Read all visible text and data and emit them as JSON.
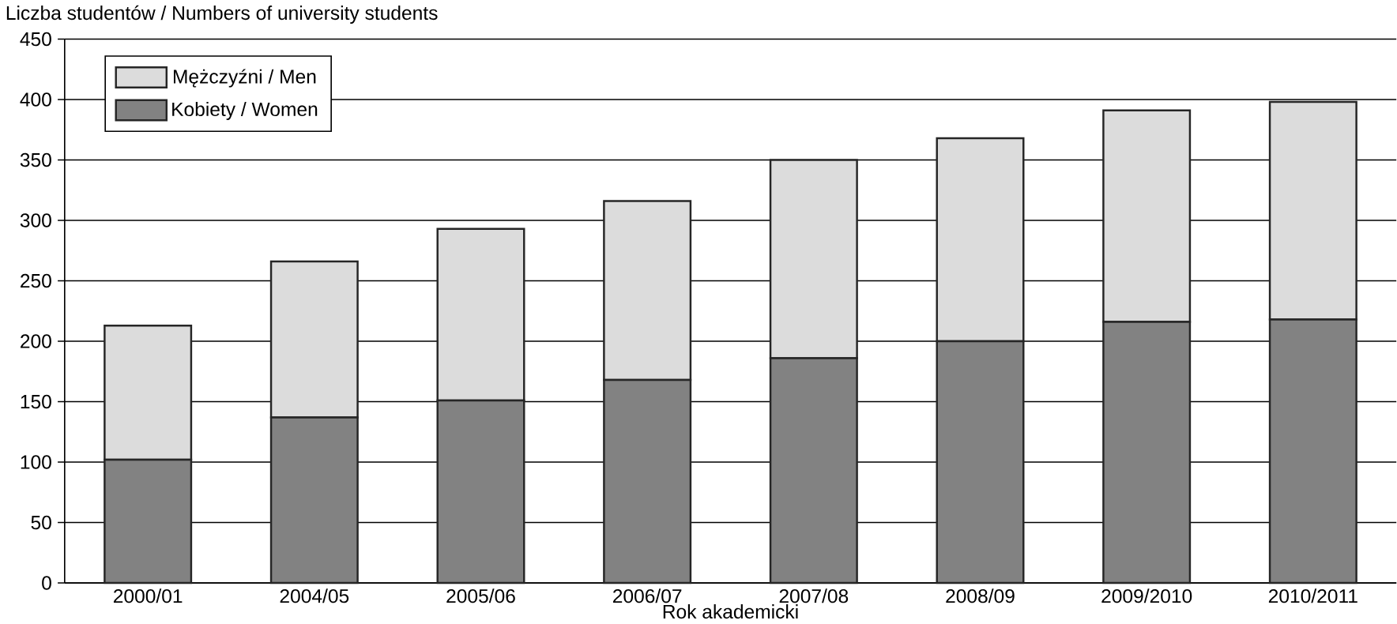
{
  "chart_data": {
    "type": "bar",
    "title": "Liczba studentów / Numbers of university students",
    "xlabel": "Rok akademicki",
    "categories": [
      "2000/01",
      "2004/05",
      "2005/06",
      "2006/07",
      "2007/08",
      "2008/09",
      "2009/2010",
      "2010/2011"
    ],
    "stacked": true,
    "series": [
      {
        "name": "Kobiety / Women",
        "color": "#828282",
        "values": [
          102,
          137,
          151,
          168,
          186,
          200,
          216,
          218
        ]
      },
      {
        "name": "Mężczyźni / Men",
        "color": "#dcdcdc",
        "values": [
          111,
          129,
          142,
          148,
          164,
          168,
          175,
          180
        ]
      }
    ],
    "ylim": [
      0,
      450
    ],
    "yticks": [
      0,
      50,
      100,
      150,
      200,
      250,
      300,
      350,
      400,
      450
    ],
    "grid": "y",
    "legend": "top left"
  }
}
